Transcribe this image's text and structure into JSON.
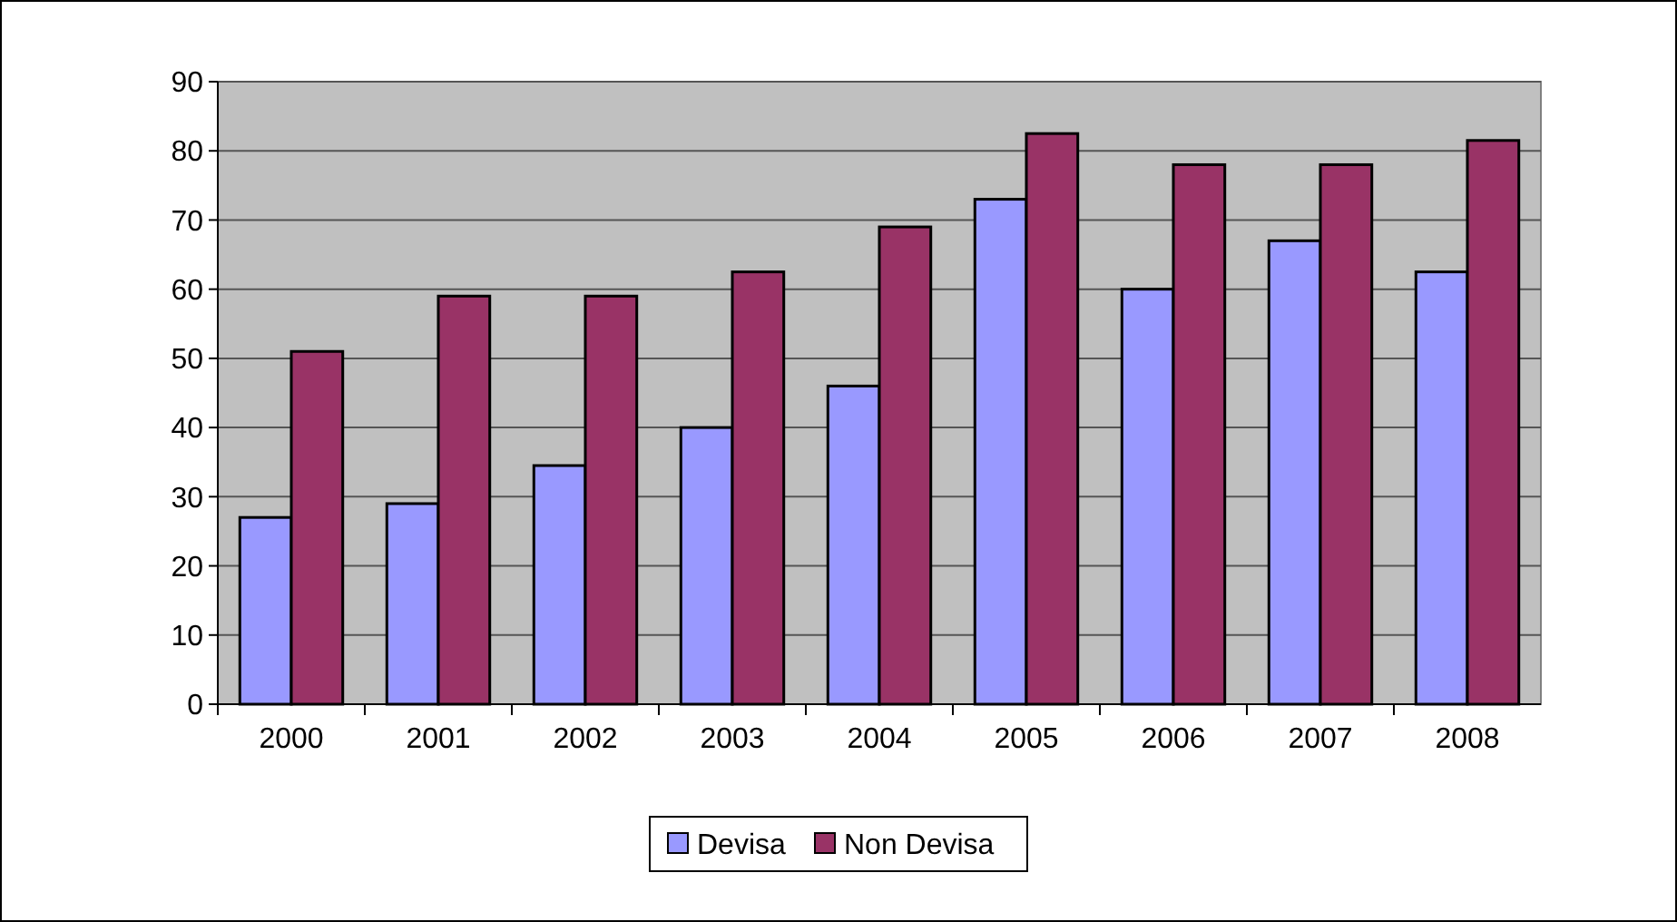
{
  "chart_data": {
    "type": "bar",
    "categories": [
      "2000",
      "2001",
      "2002",
      "2003",
      "2004",
      "2005",
      "2006",
      "2007",
      "2008"
    ],
    "series": [
      {
        "name": "Devisa",
        "color": "#9999ff",
        "values": [
          27,
          29,
          34.5,
          40,
          46,
          73,
          60,
          67,
          62.5
        ]
      },
      {
        "name": "Non Devisa",
        "color": "#993366",
        "values": [
          51,
          59,
          59,
          62.5,
          69,
          82.5,
          78,
          78,
          81.5
        ]
      }
    ],
    "ylim": [
      0,
      90
    ],
    "yticks": [
      0,
      10,
      20,
      30,
      40,
      50,
      60,
      70,
      80,
      90
    ],
    "grid": "y",
    "legend": "bottom"
  }
}
